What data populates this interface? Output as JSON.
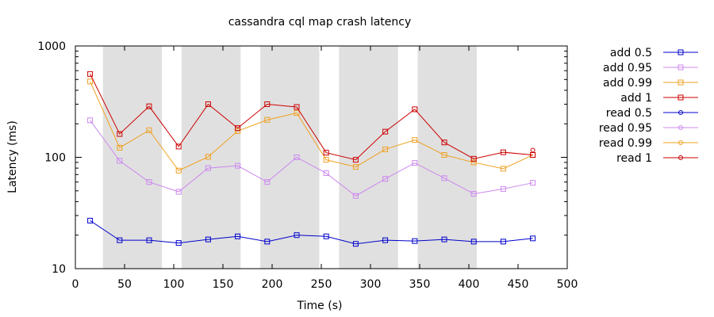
{
  "chart_data": {
    "type": "line",
    "title": "cassandra cql map crash latency",
    "xlabel": "Time (s)",
    "ylabel": "Latency (ms)",
    "xlim": [
      0,
      500
    ],
    "ylim": [
      10,
      1000
    ],
    "yscale": "log",
    "x_ticks": [
      "0",
      "50",
      "100",
      "150",
      "200",
      "250",
      "300",
      "350",
      "400",
      "450",
      "500"
    ],
    "y_ticks": [
      "10",
      "100",
      "1000"
    ],
    "grid": false,
    "legend_position": "right",
    "shaded_intervals": [
      [
        28,
        88
      ],
      [
        108,
        168
      ],
      [
        188,
        248
      ],
      [
        268,
        328
      ],
      [
        348,
        408
      ]
    ],
    "shade_color": "#e0e0e0",
    "series": [
      {
        "name": "add 0.5",
        "color": "#0000cc",
        "marker": "square",
        "x": [
          15,
          45,
          75,
          105,
          135,
          165,
          195,
          225,
          255,
          285,
          315,
          345,
          375,
          405,
          435,
          465
        ],
        "y": [
          27,
          18,
          18,
          17,
          18.3,
          19.5,
          17.5,
          20,
          19.5,
          16.7,
          18,
          17.7,
          18.3,
          17.5,
          17.5,
          18.7
        ]
      },
      {
        "name": "add 0.95",
        "color": "#cc88ee",
        "marker": "square",
        "x": [
          15,
          45,
          75,
          105,
          135,
          165,
          195,
          225,
          255,
          285,
          315,
          345,
          375,
          405,
          435,
          465
        ],
        "y": [
          215,
          93,
          60,
          49,
          80,
          84,
          60,
          100,
          72,
          45,
          64,
          89,
          65,
          47,
          52,
          59
        ]
      },
      {
        "name": "add 0.99",
        "color": "#f0a020",
        "marker": "square",
        "x": [
          15,
          45,
          75,
          105,
          135,
          165,
          195,
          225,
          255,
          285,
          315,
          345,
          375,
          405,
          435,
          465
        ],
        "y": [
          480,
          122,
          175,
          76,
          101,
          172,
          217,
          250,
          95,
          82,
          118,
          143,
          105,
          90,
          79,
          105
        ]
      },
      {
        "name": "add 1",
        "color": "#cc0000",
        "marker": "square",
        "x": [
          15,
          45,
          75,
          105,
          135,
          165,
          195,
          225,
          255,
          285,
          315,
          345,
          375,
          405,
          435,
          465
        ],
        "y": [
          560,
          162,
          287,
          125,
          300,
          183,
          300,
          283,
          110,
          95,
          170,
          270,
          136,
          97,
          111,
          105
        ]
      },
      {
        "name": "read 0.5",
        "color": "#0000cc",
        "marker": "circle",
        "x": [],
        "y": []
      },
      {
        "name": "read 0.95",
        "color": "#cc88ee",
        "marker": "circle",
        "x": [],
        "y": []
      },
      {
        "name": "read 0.99",
        "color": "#f0a020",
        "marker": "circle",
        "x": [],
        "y": []
      },
      {
        "name": "read 1",
        "color": "#cc0000",
        "marker": "circle",
        "x": [
          465
        ],
        "y": [
          116
        ]
      }
    ]
  }
}
